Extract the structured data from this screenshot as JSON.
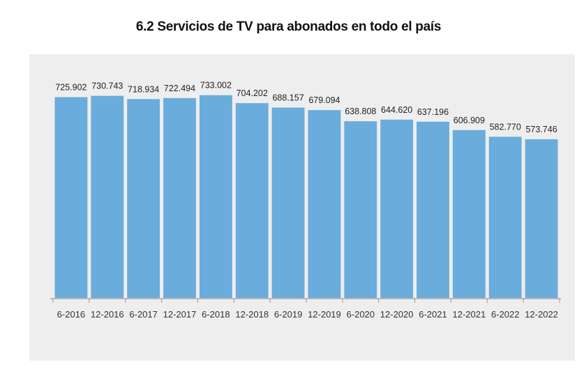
{
  "chart_data": {
    "type": "bar",
    "title": "6.2 Servicios de TV para abonados en todo el país",
    "categories": [
      "6-2016",
      "12-2016",
      "6-2017",
      "12-2017",
      "6-2018",
      "12-2018",
      "6-2019",
      "12-2019",
      "6-2020",
      "12-2020",
      "6-2021",
      "12-2021",
      "6-2022",
      "12-2022"
    ],
    "values": [
      725902,
      730743,
      718934,
      722494,
      733002,
      704202,
      688157,
      679094,
      638808,
      644620,
      637196,
      606909,
      582770,
      573746
    ],
    "value_labels": [
      "725.902",
      "730.743",
      "718.934",
      "722.494",
      "733.002",
      "704.202",
      "688.157",
      "679.094",
      "638.808",
      "644.620",
      "637.196",
      "606.909",
      "582.770",
      "573.746"
    ],
    "xlabel": "",
    "ylabel": "",
    "ylim": [
      0,
      760000
    ],
    "grid": false,
    "legend": "none",
    "bar_color": "#6aacdb",
    "label_color": "#222222",
    "axis_color": "#9a9a9a"
  }
}
